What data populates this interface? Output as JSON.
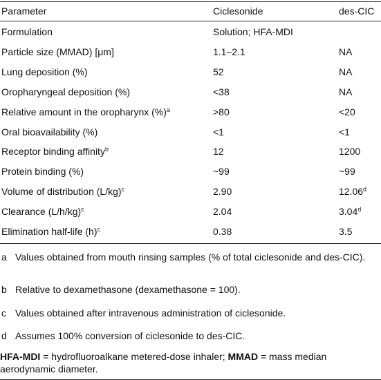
{
  "table": {
    "header": [
      "Parameter",
      "Ciclesonide",
      "des-CIC"
    ],
    "rows": [
      [
        {
          "text": "Formulation"
        },
        {
          "text": "Solution; HFA-MDI"
        },
        {
          "text": ""
        }
      ],
      [
        {
          "text": "Particle size (MMAD) [μm]"
        },
        {
          "text": "1.1–2.1"
        },
        {
          "text": "NA"
        }
      ],
      [
        {
          "text": "Lung deposition (%)"
        },
        {
          "text": "52"
        },
        {
          "text": "NA"
        }
      ],
      [
        {
          "text": "Oropharyngeal deposition (%)"
        },
        {
          "text": "<38"
        },
        {
          "text": "NA"
        }
      ],
      [
        {
          "text": "Relative amount in the oropharynx (%)",
          "sup": "a"
        },
        {
          "text": ">80"
        },
        {
          "text": "<20"
        }
      ],
      [
        {
          "text": "Oral bioavailability (%)"
        },
        {
          "text": "<1"
        },
        {
          "text": "<1"
        }
      ],
      [
        {
          "text": "Receptor binding affinity",
          "sup": "b"
        },
        {
          "text": "12"
        },
        {
          "text": "1200"
        }
      ],
      [
        {
          "text": "Protein binding (%)"
        },
        {
          "text": "~99"
        },
        {
          "text": "~99"
        }
      ],
      [
        {
          "text": "Volume of distribution (L/kg)",
          "sup": "c"
        },
        {
          "text": "2.90"
        },
        {
          "text": "12.06",
          "sup": "d"
        }
      ],
      [
        {
          "text": "Clearance (L/h/kg)",
          "sup": "c"
        },
        {
          "text": "2.04"
        },
        {
          "text": "3.04",
          "sup": "d"
        }
      ],
      [
        {
          "text": "Elimination half-life (h)",
          "sup": "c"
        },
        {
          "text": "0.38"
        },
        {
          "text": "3.5"
        }
      ]
    ],
    "footnotes": [
      {
        "marker": "a",
        "text": "Values obtained from mouth rinsing samples (% of total ciclesonide and des-CIC)."
      },
      {
        "marker": "b",
        "text": "Relative to dexamethasone (dexamethasone = 100)."
      },
      {
        "marker": "c",
        "text": "Values obtained after intravenous administration of ciclesonide."
      },
      {
        "marker": "d",
        "text": "Assumes 100% conversion of ciclesonide to des-CIC."
      }
    ],
    "abbreviations": [
      {
        "text": "HFA-MDI",
        "bold": true
      },
      {
        "text": " = hydrofluoroalkane metered-dose inhaler; ",
        "bold": false
      },
      {
        "text": "MMAD",
        "bold": true
      },
      {
        "text": " = mass median aerodynamic diameter.",
        "bold": false
      }
    ]
  }
}
